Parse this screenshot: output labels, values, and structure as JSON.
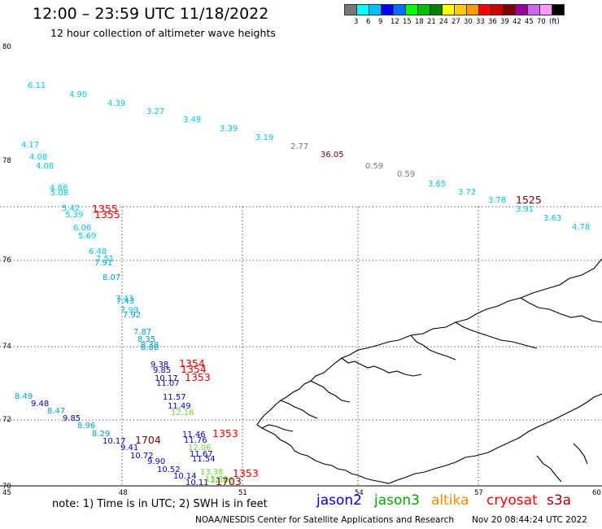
{
  "header": {
    "title": "12:00 – 23:59 UTC 11/18/2022",
    "subtitle": "12 hour collection of altimeter wave heights"
  },
  "scale": {
    "colors": [
      "#777777",
      "#00ffff",
      "#00c0ff",
      "#0000ff",
      "#0070ff",
      "#00ff00",
      "#00c000",
      "#008000",
      "#ffff00",
      "#ffcc00",
      "#ff9900",
      "#ff0000",
      "#cc0000",
      "#800000",
      "#990099",
      "#cc66ff",
      "#ff99ff",
      "#000000"
    ],
    "labels": [
      "3",
      "6",
      "9",
      "12",
      "15",
      "18",
      "21",
      "24",
      "27",
      "30",
      "33",
      "36",
      "39",
      "42",
      "45",
      "70",
      "(ft)"
    ]
  },
  "axes": {
    "lat_labels": [
      "80",
      "78",
      "76",
      "74",
      "72",
      "70"
    ],
    "lon_labels": [
      "45",
      "48",
      "51",
      "54",
      "57",
      "60"
    ]
  },
  "wave_heights": [
    {
      "v": "6.11",
      "c": "#00c8e6"
    },
    {
      "v": "4.90",
      "c": "#00c8e6"
    },
    {
      "v": "4.39",
      "c": "#00c8e6"
    },
    {
      "v": "3.27",
      "c": "#00c8e6"
    },
    {
      "v": "3.49",
      "c": "#00c8e6"
    },
    {
      "v": "3.39",
      "c": "#00c8e6"
    },
    {
      "v": "3.19",
      "c": "#00c8e6"
    },
    {
      "v": "2.77",
      "c": "#777777"
    },
    {
      "v": "36.05",
      "c": "#800000"
    },
    {
      "v": "0.59",
      "c": "#777777"
    },
    {
      "v": "0.59",
      "c": "#777777"
    },
    {
      "v": "3.65",
      "c": "#00c8e6"
    },
    {
      "v": "3.72",
      "c": "#00c8e6"
    },
    {
      "v": "3.78",
      "c": "#00c8e6"
    },
    {
      "v": "1525",
      "c": "#800000"
    },
    {
      "v": "3.91",
      "c": "#00c8e6"
    },
    {
      "v": "3.63",
      "c": "#00c8e6"
    },
    {
      "v": "4.78",
      "c": "#00c8e6"
    },
    {
      "v": "4.17",
      "c": "#00c8e6"
    },
    {
      "v": "4.08",
      "c": "#00c8e6"
    },
    {
      "v": "4.08",
      "c": "#00c8e6"
    },
    {
      "v": "4.88",
      "c": "#00c8e6"
    },
    {
      "v": "5.08",
      "c": "#00c8e6"
    },
    {
      "v": "5.42",
      "c": "#00c8e6"
    },
    {
      "v": "1355",
      "c": "#ff0000"
    },
    {
      "v": "5.39",
      "c": "#00c8e6"
    },
    {
      "v": "1355",
      "c": "#ff0000"
    },
    {
      "v": "6.06",
      "c": "#00c8e6"
    },
    {
      "v": "5.69",
      "c": "#00c8e6"
    },
    {
      "v": "6.48",
      "c": "#00c8e6"
    },
    {
      "v": "7.91",
      "c": "#00a0d0"
    },
    {
      "v": "7.51",
      "c": "#00c8e6"
    },
    {
      "v": "8.07",
      "c": "#00a0d0"
    },
    {
      "v": "7.43",
      "c": "#00c8e6"
    },
    {
      "v": "7.43",
      "c": "#00a0d0"
    },
    {
      "v": "7.99",
      "c": "#00c8e6"
    },
    {
      "v": "7.92",
      "c": "#00a0d0"
    },
    {
      "v": "7.87",
      "c": "#00a0d0"
    },
    {
      "v": "8.35",
      "c": "#00a0d0"
    },
    {
      "v": "8.38",
      "c": "#00a0d0"
    },
    {
      "v": "8.88",
      "c": "#00a0d0"
    },
    {
      "v": "9.38",
      "c": "#0000cc"
    },
    {
      "v": "1354",
      "c": "#ff0000"
    },
    {
      "v": "9.85",
      "c": "#0000cc"
    },
    {
      "v": "1354",
      "c": "#ff0000"
    },
    {
      "v": "10.17",
      "c": "#0000cc"
    },
    {
      "v": "1353",
      "c": "#ff0000"
    },
    {
      "v": "11.07",
      "c": "#0000cc"
    },
    {
      "v": "11.57",
      "c": "#0000cc"
    },
    {
      "v": "11.49",
      "c": "#0000cc"
    },
    {
      "v": "12.16",
      "c": "#66dd33"
    },
    {
      "v": "8.49",
      "c": "#00a0d0"
    },
    {
      "v": "9.48",
      "c": "#0000cc"
    },
    {
      "v": "8.47",
      "c": "#00a0d0"
    },
    {
      "v": "9.85",
      "c": "#0000cc"
    },
    {
      "v": "8.96",
      "c": "#00a0d0"
    },
    {
      "v": "8.29",
      "c": "#00a0d0"
    },
    {
      "v": "10.17",
      "c": "#0000cc"
    },
    {
      "v": "1704",
      "c": "#800000"
    },
    {
      "v": "9.41",
      "c": "#0000cc"
    },
    {
      "v": "10.72",
      "c": "#0000cc"
    },
    {
      "v": "9.90",
      "c": "#0000cc"
    },
    {
      "v": "10.52",
      "c": "#0000cc"
    },
    {
      "v": "10.14",
      "c": "#0000cc"
    },
    {
      "v": "10.11",
      "c": "#0000cc"
    },
    {
      "v": "11.46",
      "c": "#0000cc"
    },
    {
      "v": "1353",
      "c": "#ff0000"
    },
    {
      "v": "11.76",
      "c": "#0000cc"
    },
    {
      "v": "12.06",
      "c": "#66dd33"
    },
    {
      "v": "11.67",
      "c": "#0000cc"
    },
    {
      "v": "11.54",
      "c": "#0000cc"
    },
    {
      "v": "13.38",
      "c": "#66dd33"
    },
    {
      "v": "13.36",
      "c": "#66dd33"
    },
    {
      "v": "1353",
      "c": "#ff0000"
    },
    {
      "v": "12.86",
      "c": "#66dd33"
    },
    {
      "v": "1703",
      "c": "#800000"
    }
  ],
  "footer": {
    "note": "note: 1) Time is in UTC; 2) SWH is in feet",
    "sats": [
      {
        "name": "jason2",
        "color": "#0000ee"
      },
      {
        "name": "jason3",
        "color": "#00aa00"
      },
      {
        "name": "altika",
        "color": "#ff8800"
      },
      {
        "name": "cryosat",
        "color": "#ff0000"
      },
      {
        "name": "s3a",
        "color": "#aa0000"
      }
    ],
    "credit": "NOAA/NESDIS Center for Satellite Applications and Research",
    "timestamp": "Nov 20 08:44:24 UTC 2022"
  }
}
